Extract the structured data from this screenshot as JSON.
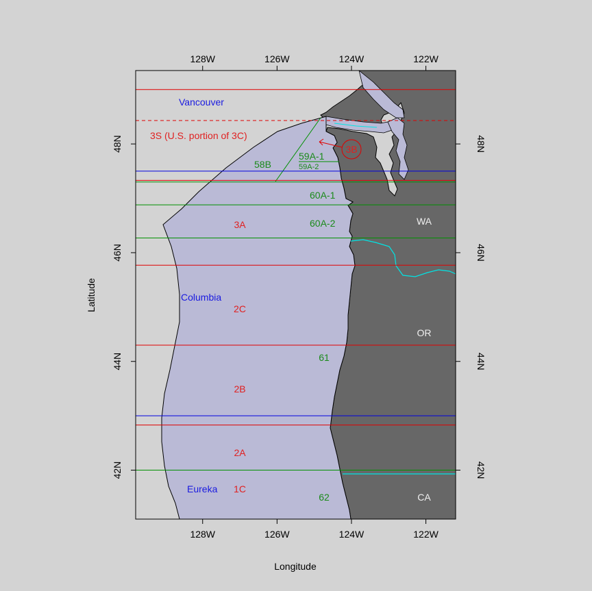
{
  "colors": {
    "background": "#d3d3d3",
    "ocean_region": "#babad6",
    "land": "#676767",
    "inland_water": "#babad6",
    "red_line": "#e00000",
    "blue_line": "#0000e0",
    "green_line": "#009000",
    "river": "#00e5e5",
    "red_text": "#e02020",
    "blue_text": "#1a1ae0",
    "green_text": "#1a8a1a",
    "white_text": "#f0f0f0"
  },
  "axes": {
    "x_label": "Longitude",
    "y_label": "Latitude",
    "x_ticks": [
      "128W",
      "126W",
      "124W",
      "122W"
    ],
    "y_ticks": [
      "48N",
      "46N",
      "44N",
      "42N"
    ],
    "x_range": [
      -129.8,
      -121.2
    ],
    "y_range": [
      41.1,
      49.35
    ]
  },
  "boundary_lines": [
    {
      "color": "red",
      "lat": 49.0,
      "style": "solid"
    },
    {
      "color": "red",
      "lat": 48.43,
      "style": "dashed"
    },
    {
      "color": "blue",
      "lat": 47.5,
      "style": "solid"
    },
    {
      "color": "red",
      "lat": 47.33,
      "style": "solid"
    },
    {
      "color": "green",
      "lat": 47.3,
      "style": "solid"
    },
    {
      "color": "green",
      "lat": 46.88,
      "style": "solid"
    },
    {
      "color": "green",
      "lat": 46.27,
      "style": "solid"
    },
    {
      "color": "red",
      "lat": 45.77,
      "style": "solid"
    },
    {
      "color": "red",
      "lat": 44.3,
      "style": "solid"
    },
    {
      "color": "blue",
      "lat": 43.0,
      "style": "solid"
    },
    {
      "color": "red",
      "lat": 42.83,
      "style": "solid"
    },
    {
      "color": "green",
      "lat": 42.0,
      "style": "solid"
    }
  ],
  "labels": {
    "vancouver": "Vancouver",
    "columbia": "Columbia",
    "eureka": "Eureka",
    "area_3s": "3S (U.S. portion of 3C)",
    "area_3b": "3B",
    "area_3a": "3A",
    "area_2c": "2C",
    "area_2b": "2B",
    "area_2a": "2A",
    "area_1c": "1C",
    "area_58b": "58B",
    "area_59a1": "59A-1",
    "area_59a2": "59A-2",
    "area_60a1": "60A-1",
    "area_60a2": "60A-2",
    "area_61": "61",
    "area_62": "62",
    "state_wa": "WA",
    "state_or": "OR",
    "state_ca": "CA"
  }
}
